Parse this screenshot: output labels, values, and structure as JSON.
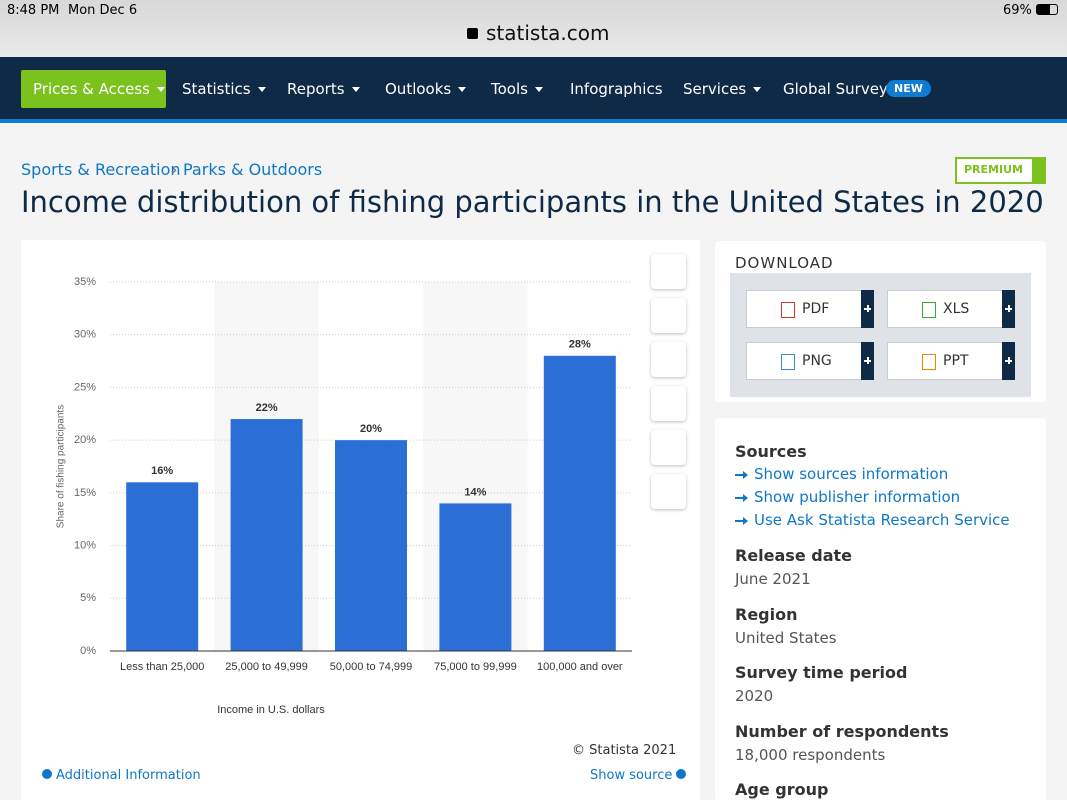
{
  "status": {
    "time": "8:48 PM",
    "date": "Mon Dec 6",
    "battery": "69%"
  },
  "url": "statista.com",
  "nav": {
    "items": [
      "Prices & Access",
      "Statistics",
      "Reports",
      "Outlooks",
      "Tools",
      "Infographics",
      "Services",
      "Global Survey"
    ],
    "badge": "NEW"
  },
  "breadcrumbs": [
    "Sports & Recreation",
    "Parks & Outdoors"
  ],
  "premium": "PREMIUM",
  "chart_data": {
    "type": "bar",
    "title": "Income distribution of fishing participants in the United States in 2020",
    "categories": [
      "Less than 25,000",
      "25,000 to 49,999",
      "50,000 to 74,999",
      "75,000 to 99,999",
      "100,000 and over"
    ],
    "values": [
      16,
      22,
      20,
      14,
      28
    ],
    "value_labels": [
      "16%",
      "22%",
      "20%",
      "14%",
      "28%"
    ],
    "color": "#2b6fd6",
    "ylim": [
      0,
      35
    ],
    "yticks": [
      {
        "value": 0,
        "label": "0%"
      },
      {
        "value": 5,
        "label": "5%"
      },
      {
        "value": 10,
        "label": "10%"
      },
      {
        "value": 15,
        "label": "15%"
      },
      {
        "value": 20,
        "label": "20%"
      },
      {
        "value": 25,
        "label": "25%"
      },
      {
        "value": 30,
        "label": "30%"
      },
      {
        "value": 35,
        "label": "35%"
      }
    ],
    "grid": true,
    "ylabel": "Share of fishing participants",
    "xlabel": "Income in U.S. dollars",
    "source": "© Statista 2021"
  },
  "chart_footer": {
    "additional": "Additional Information",
    "show_source": "Show source"
  },
  "download": {
    "heading": "DOWNLOAD",
    "buttons": [
      "PDF",
      "XLS",
      "PNG",
      "PPT"
    ]
  },
  "details": {
    "sources_heading": "Sources",
    "links": [
      "Show sources information",
      "Show publisher information",
      "Use Ask Statista Research Service"
    ],
    "sections": [
      {
        "label": "Release date",
        "value": "June 2021"
      },
      {
        "label": "Region",
        "value": "United States"
      },
      {
        "label": "Survey time period",
        "value": "2020"
      },
      {
        "label": "Number of respondents",
        "value": "18,000 respondents"
      },
      {
        "label": "Age group"
      }
    ]
  }
}
